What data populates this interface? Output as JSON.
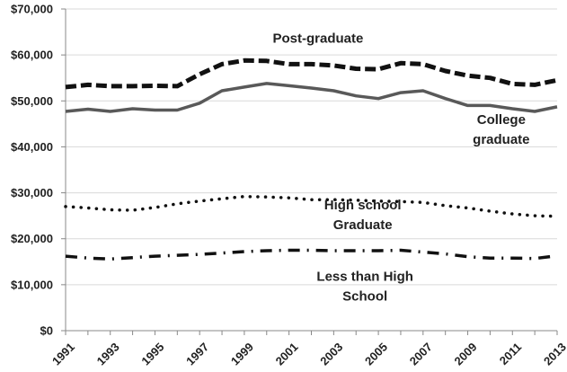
{
  "chart_data": {
    "type": "line",
    "title": "",
    "xlabel": "",
    "ylabel": "",
    "ylim": [
      0,
      70000
    ],
    "yticks": [
      0,
      10000,
      20000,
      30000,
      40000,
      50000,
      60000,
      70000
    ],
    "ytick_labels": [
      "$0",
      "$10,000",
      "$20,000",
      "$30,000",
      "$40,000",
      "$50,000",
      "$60,000",
      "$70,000"
    ],
    "xlim": [
      1991,
      2013
    ],
    "xticks": [
      1991,
      1993,
      1995,
      1997,
      1999,
      2001,
      2003,
      2005,
      2007,
      2009,
      2011,
      2013
    ],
    "xtick_labels": [
      "1991",
      "1993",
      "1995",
      "1997",
      "1999",
      "2001",
      "2003",
      "2005",
      "2007",
      "2009",
      "2011",
      "2013"
    ],
    "grid": "horizontal",
    "legend": "none",
    "x": [
      1991,
      1992,
      1993,
      1994,
      1995,
      1996,
      1997,
      1998,
      1999,
      2000,
      2001,
      2002,
      2003,
      2004,
      2005,
      2006,
      2007,
      2008,
      2009,
      2010,
      2011,
      2012,
      2013
    ],
    "series": [
      {
        "name": "Post-graduate",
        "style": "bold-dash",
        "color": "#111111",
        "values": [
          53000,
          53500,
          53200,
          53200,
          53300,
          53200,
          55800,
          58000,
          58800,
          58700,
          58000,
          58000,
          57700,
          57000,
          56900,
          58200,
          58000,
          56500,
          55500,
          55000,
          53700,
          53500,
          54500
        ]
      },
      {
        "name": "College graduate",
        "style": "solid",
        "color": "#595959",
        "values": [
          47700,
          48200,
          47700,
          48300,
          48000,
          48000,
          49500,
          52200,
          53000,
          53800,
          53300,
          52800,
          52200,
          51100,
          50500,
          51800,
          52200,
          50500,
          49000,
          49000,
          48300,
          47700,
          48700
        ]
      },
      {
        "name": "High school Graduate",
        "style": "dotted",
        "color": "#111111",
        "values": [
          27000,
          26700,
          26300,
          26200,
          26800,
          27600,
          28200,
          28700,
          29200,
          29100,
          28900,
          28500,
          28500,
          28400,
          28200,
          28100,
          27900,
          27200,
          26700,
          26000,
          25400,
          25000,
          24900
        ]
      },
      {
        "name": "Less than High School",
        "style": "dash-dot",
        "color": "#111111",
        "values": [
          16200,
          15800,
          15600,
          15900,
          16200,
          16400,
          16600,
          16900,
          17200,
          17400,
          17500,
          17500,
          17400,
          17400,
          17400,
          17500,
          17100,
          16700,
          16100,
          15800,
          15800,
          15700,
          16300
        ]
      }
    ],
    "annotations": [
      {
        "lines": [
          "Post-graduate"
        ],
        "series": 0,
        "year": 2002.3,
        "value": 62700
      },
      {
        "lines": [
          "College",
          "graduate"
        ],
        "series": 1,
        "year": 2010.5,
        "value": 45000
      },
      {
        "lines": [
          "High school",
          "Graduate"
        ],
        "series": 2,
        "year": 2004.3,
        "value": 26400
      },
      {
        "lines": [
          "Less than High",
          "School"
        ],
        "series": 3,
        "year": 2004.4,
        "value": 10900
      }
    ]
  }
}
